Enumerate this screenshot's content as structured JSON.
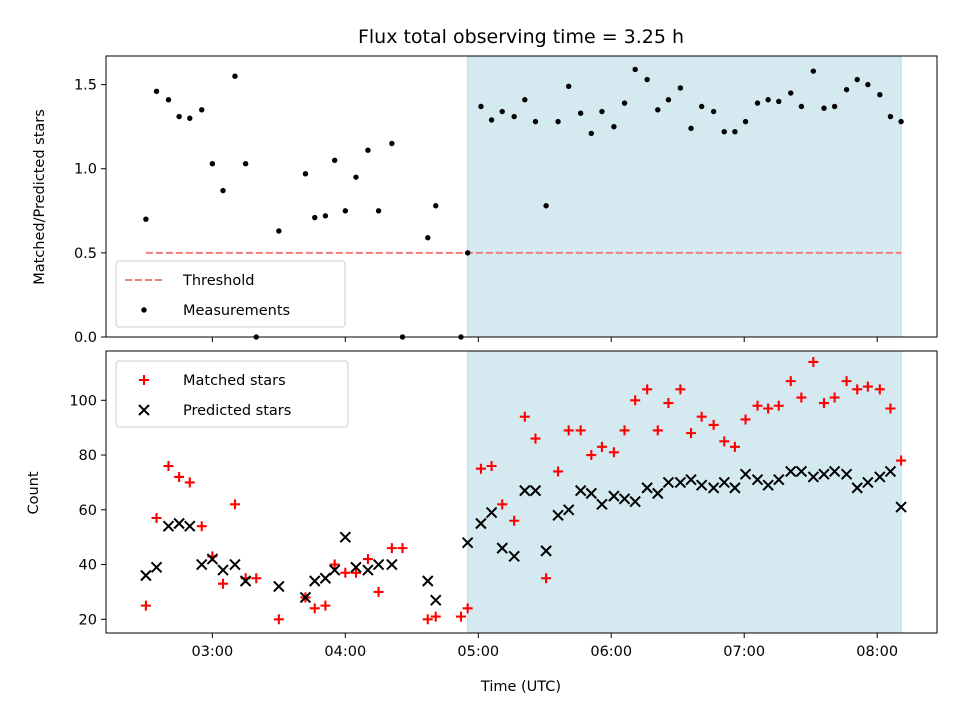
{
  "figure": {
    "title": "Flux total observing time = 3.25 h"
  },
  "chart_data": [
    {
      "type": "scatter",
      "panel": "top",
      "ylabel": "Matched/Predicted stars",
      "xlabel": "",
      "x_unit": "hours_utc",
      "xlim": [
        2.2,
        8.45
      ],
      "ylim": [
        0.0,
        1.67
      ],
      "yticks": [
        0.0,
        0.5,
        1.0,
        1.5
      ],
      "ytick_labels": [
        "0.0",
        "0.5",
        "1.0",
        "1.5"
      ],
      "xticks": [
        3,
        4,
        5,
        6,
        7,
        8
      ],
      "xtick_labels_visible": false,
      "shaded_region": {
        "x": [
          4.92,
          8.18
        ],
        "color": "#d4e9f0"
      },
      "threshold": {
        "name": "Threshold",
        "y": 0.5,
        "x": [
          2.5,
          8.18
        ],
        "color": "#f08080",
        "style": "dashed"
      },
      "legend": {
        "position": "lower-left",
        "entries": [
          "Threshold",
          "Measurements"
        ]
      },
      "series": [
        {
          "name": "Measurements",
          "marker": "dot",
          "color": "#000000",
          "points": [
            [
              2.5,
              0.7
            ],
            [
              2.58,
              1.46
            ],
            [
              2.67,
              1.41
            ],
            [
              2.75,
              1.31
            ],
            [
              2.83,
              1.3
            ],
            [
              2.92,
              1.35
            ],
            [
              3.0,
              1.03
            ],
            [
              3.08,
              0.87
            ],
            [
              3.17,
              1.55
            ],
            [
              3.25,
              1.03
            ],
            [
              3.33,
              0.0
            ],
            [
              3.5,
              0.63
            ],
            [
              3.7,
              0.97
            ],
            [
              3.77,
              0.71
            ],
            [
              3.85,
              0.72
            ],
            [
              3.92,
              1.05
            ],
            [
              4.0,
              0.75
            ],
            [
              4.08,
              0.95
            ],
            [
              4.17,
              1.11
            ],
            [
              4.25,
              0.75
            ],
            [
              4.35,
              1.15
            ],
            [
              4.43,
              0.0
            ],
            [
              4.62,
              0.59
            ],
            [
              4.68,
              0.78
            ],
            [
              4.87,
              0.0
            ],
            [
              4.92,
              0.5
            ],
            [
              5.02,
              1.37
            ],
            [
              5.1,
              1.29
            ],
            [
              5.18,
              1.34
            ],
            [
              5.27,
              1.31
            ],
            [
              5.35,
              1.41
            ],
            [
              5.43,
              1.28
            ],
            [
              5.51,
              0.78
            ],
            [
              5.6,
              1.28
            ],
            [
              5.68,
              1.49
            ],
            [
              5.77,
              1.33
            ],
            [
              5.85,
              1.21
            ],
            [
              5.93,
              1.34
            ],
            [
              6.02,
              1.25
            ],
            [
              6.1,
              1.39
            ],
            [
              6.18,
              1.59
            ],
            [
              6.27,
              1.53
            ],
            [
              6.35,
              1.35
            ],
            [
              6.43,
              1.41
            ],
            [
              6.52,
              1.48
            ],
            [
              6.6,
              1.24
            ],
            [
              6.68,
              1.37
            ],
            [
              6.77,
              1.34
            ],
            [
              6.85,
              1.22
            ],
            [
              6.93,
              1.22
            ],
            [
              7.01,
              1.28
            ],
            [
              7.1,
              1.39
            ],
            [
              7.18,
              1.41
            ],
            [
              7.26,
              1.4
            ],
            [
              7.35,
              1.45
            ],
            [
              7.43,
              1.37
            ],
            [
              7.52,
              1.58
            ],
            [
              7.6,
              1.36
            ],
            [
              7.68,
              1.37
            ],
            [
              7.77,
              1.47
            ],
            [
              7.85,
              1.53
            ],
            [
              7.93,
              1.5
            ],
            [
              8.02,
              1.44
            ],
            [
              8.1,
              1.31
            ],
            [
              8.18,
              1.28
            ]
          ]
        }
      ]
    },
    {
      "type": "scatter",
      "panel": "bottom",
      "ylabel": "Count",
      "xlabel": "Time (UTC)",
      "x_unit": "hours_utc",
      "xlim": [
        2.2,
        8.45
      ],
      "ylim": [
        15,
        118
      ],
      "yticks": [
        20,
        40,
        60,
        80,
        100
      ],
      "ytick_labels": [
        "20",
        "40",
        "60",
        "80",
        "100"
      ],
      "xticks": [
        3,
        4,
        5,
        6,
        7,
        8
      ],
      "xtick_labels": [
        "03:00",
        "04:00",
        "05:00",
        "06:00",
        "07:00",
        "08:00"
      ],
      "shaded_region": {
        "x": [
          4.92,
          8.18
        ],
        "color": "#d4e9f0"
      },
      "legend": {
        "position": "upper-left",
        "entries": [
          "Matched stars",
          "Predicted stars"
        ]
      },
      "series": [
        {
          "name": "Matched stars",
          "marker": "plus",
          "color": "#ff0000",
          "points": [
            [
              2.5,
              25
            ],
            [
              2.58,
              57
            ],
            [
              2.67,
              76
            ],
            [
              2.75,
              72
            ],
            [
              2.83,
              70
            ],
            [
              2.92,
              54
            ],
            [
              3.0,
              43
            ],
            [
              3.08,
              33
            ],
            [
              3.17,
              62
            ],
            [
              3.25,
              35
            ],
            [
              3.33,
              35
            ],
            [
              3.5,
              20
            ],
            [
              3.7,
              28
            ],
            [
              3.77,
              24
            ],
            [
              3.85,
              25
            ],
            [
              3.92,
              40
            ],
            [
              4.0,
              37
            ],
            [
              4.08,
              37
            ],
            [
              4.17,
              42
            ],
            [
              4.25,
              30
            ],
            [
              4.35,
              46
            ],
            [
              4.43,
              46
            ],
            [
              4.62,
              20
            ],
            [
              4.68,
              21
            ],
            [
              4.87,
              21
            ],
            [
              4.92,
              24
            ],
            [
              5.02,
              75
            ],
            [
              5.1,
              76
            ],
            [
              5.18,
              62
            ],
            [
              5.27,
              56
            ],
            [
              5.35,
              94
            ],
            [
              5.43,
              86
            ],
            [
              5.51,
              35
            ],
            [
              5.6,
              74
            ],
            [
              5.68,
              89
            ],
            [
              5.77,
              89
            ],
            [
              5.85,
              80
            ],
            [
              5.93,
              83
            ],
            [
              6.02,
              81
            ],
            [
              6.1,
              89
            ],
            [
              6.18,
              100
            ],
            [
              6.27,
              104
            ],
            [
              6.35,
              89
            ],
            [
              6.43,
              99
            ],
            [
              6.52,
              104
            ],
            [
              6.6,
              88
            ],
            [
              6.68,
              94
            ],
            [
              6.77,
              91
            ],
            [
              6.85,
              85
            ],
            [
              6.93,
              83
            ],
            [
              7.01,
              93
            ],
            [
              7.1,
              98
            ],
            [
              7.18,
              97
            ],
            [
              7.26,
              98
            ],
            [
              7.35,
              107
            ],
            [
              7.43,
              101
            ],
            [
              7.52,
              114
            ],
            [
              7.6,
              99
            ],
            [
              7.68,
              101
            ],
            [
              7.77,
              107
            ],
            [
              7.85,
              104
            ],
            [
              7.93,
              105
            ],
            [
              8.02,
              104
            ],
            [
              8.1,
              97
            ],
            [
              8.18,
              78
            ]
          ]
        },
        {
          "name": "Predicted stars",
          "marker": "x",
          "color": "#000000",
          "points": [
            [
              2.5,
              36
            ],
            [
              2.58,
              39
            ],
            [
              2.67,
              54
            ],
            [
              2.75,
              55
            ],
            [
              2.83,
              54
            ],
            [
              2.92,
              40
            ],
            [
              3.0,
              42
            ],
            [
              3.08,
              38
            ],
            [
              3.17,
              40
            ],
            [
              3.25,
              34
            ],
            [
              3.5,
              32
            ],
            [
              3.7,
              28
            ],
            [
              3.77,
              34
            ],
            [
              3.85,
              35
            ],
            [
              3.92,
              38
            ],
            [
              4.0,
              50
            ],
            [
              4.08,
              39
            ],
            [
              4.17,
              38
            ],
            [
              4.25,
              40
            ],
            [
              4.35,
              40
            ],
            [
              4.62,
              34
            ],
            [
              4.68,
              27
            ],
            [
              4.92,
              48
            ],
            [
              5.02,
              55
            ],
            [
              5.1,
              59
            ],
            [
              5.18,
              46
            ],
            [
              5.27,
              43
            ],
            [
              5.35,
              67
            ],
            [
              5.43,
              67
            ],
            [
              5.51,
              45
            ],
            [
              5.6,
              58
            ],
            [
              5.68,
              60
            ],
            [
              5.77,
              67
            ],
            [
              5.85,
              66
            ],
            [
              5.93,
              62
            ],
            [
              6.02,
              65
            ],
            [
              6.1,
              64
            ],
            [
              6.18,
              63
            ],
            [
              6.27,
              68
            ],
            [
              6.35,
              66
            ],
            [
              6.43,
              70
            ],
            [
              6.52,
              70
            ],
            [
              6.6,
              71
            ],
            [
              6.68,
              69
            ],
            [
              6.77,
              68
            ],
            [
              6.85,
              70
            ],
            [
              6.93,
              68
            ],
            [
              7.01,
              73
            ],
            [
              7.1,
              71
            ],
            [
              7.18,
              69
            ],
            [
              7.26,
              71
            ],
            [
              7.35,
              74
            ],
            [
              7.43,
              74
            ],
            [
              7.52,
              72
            ],
            [
              7.6,
              73
            ],
            [
              7.68,
              74
            ],
            [
              7.77,
              73
            ],
            [
              7.85,
              68
            ],
            [
              7.93,
              70
            ],
            [
              8.02,
              72
            ],
            [
              8.1,
              74
            ],
            [
              8.18,
              61
            ]
          ]
        }
      ]
    }
  ]
}
